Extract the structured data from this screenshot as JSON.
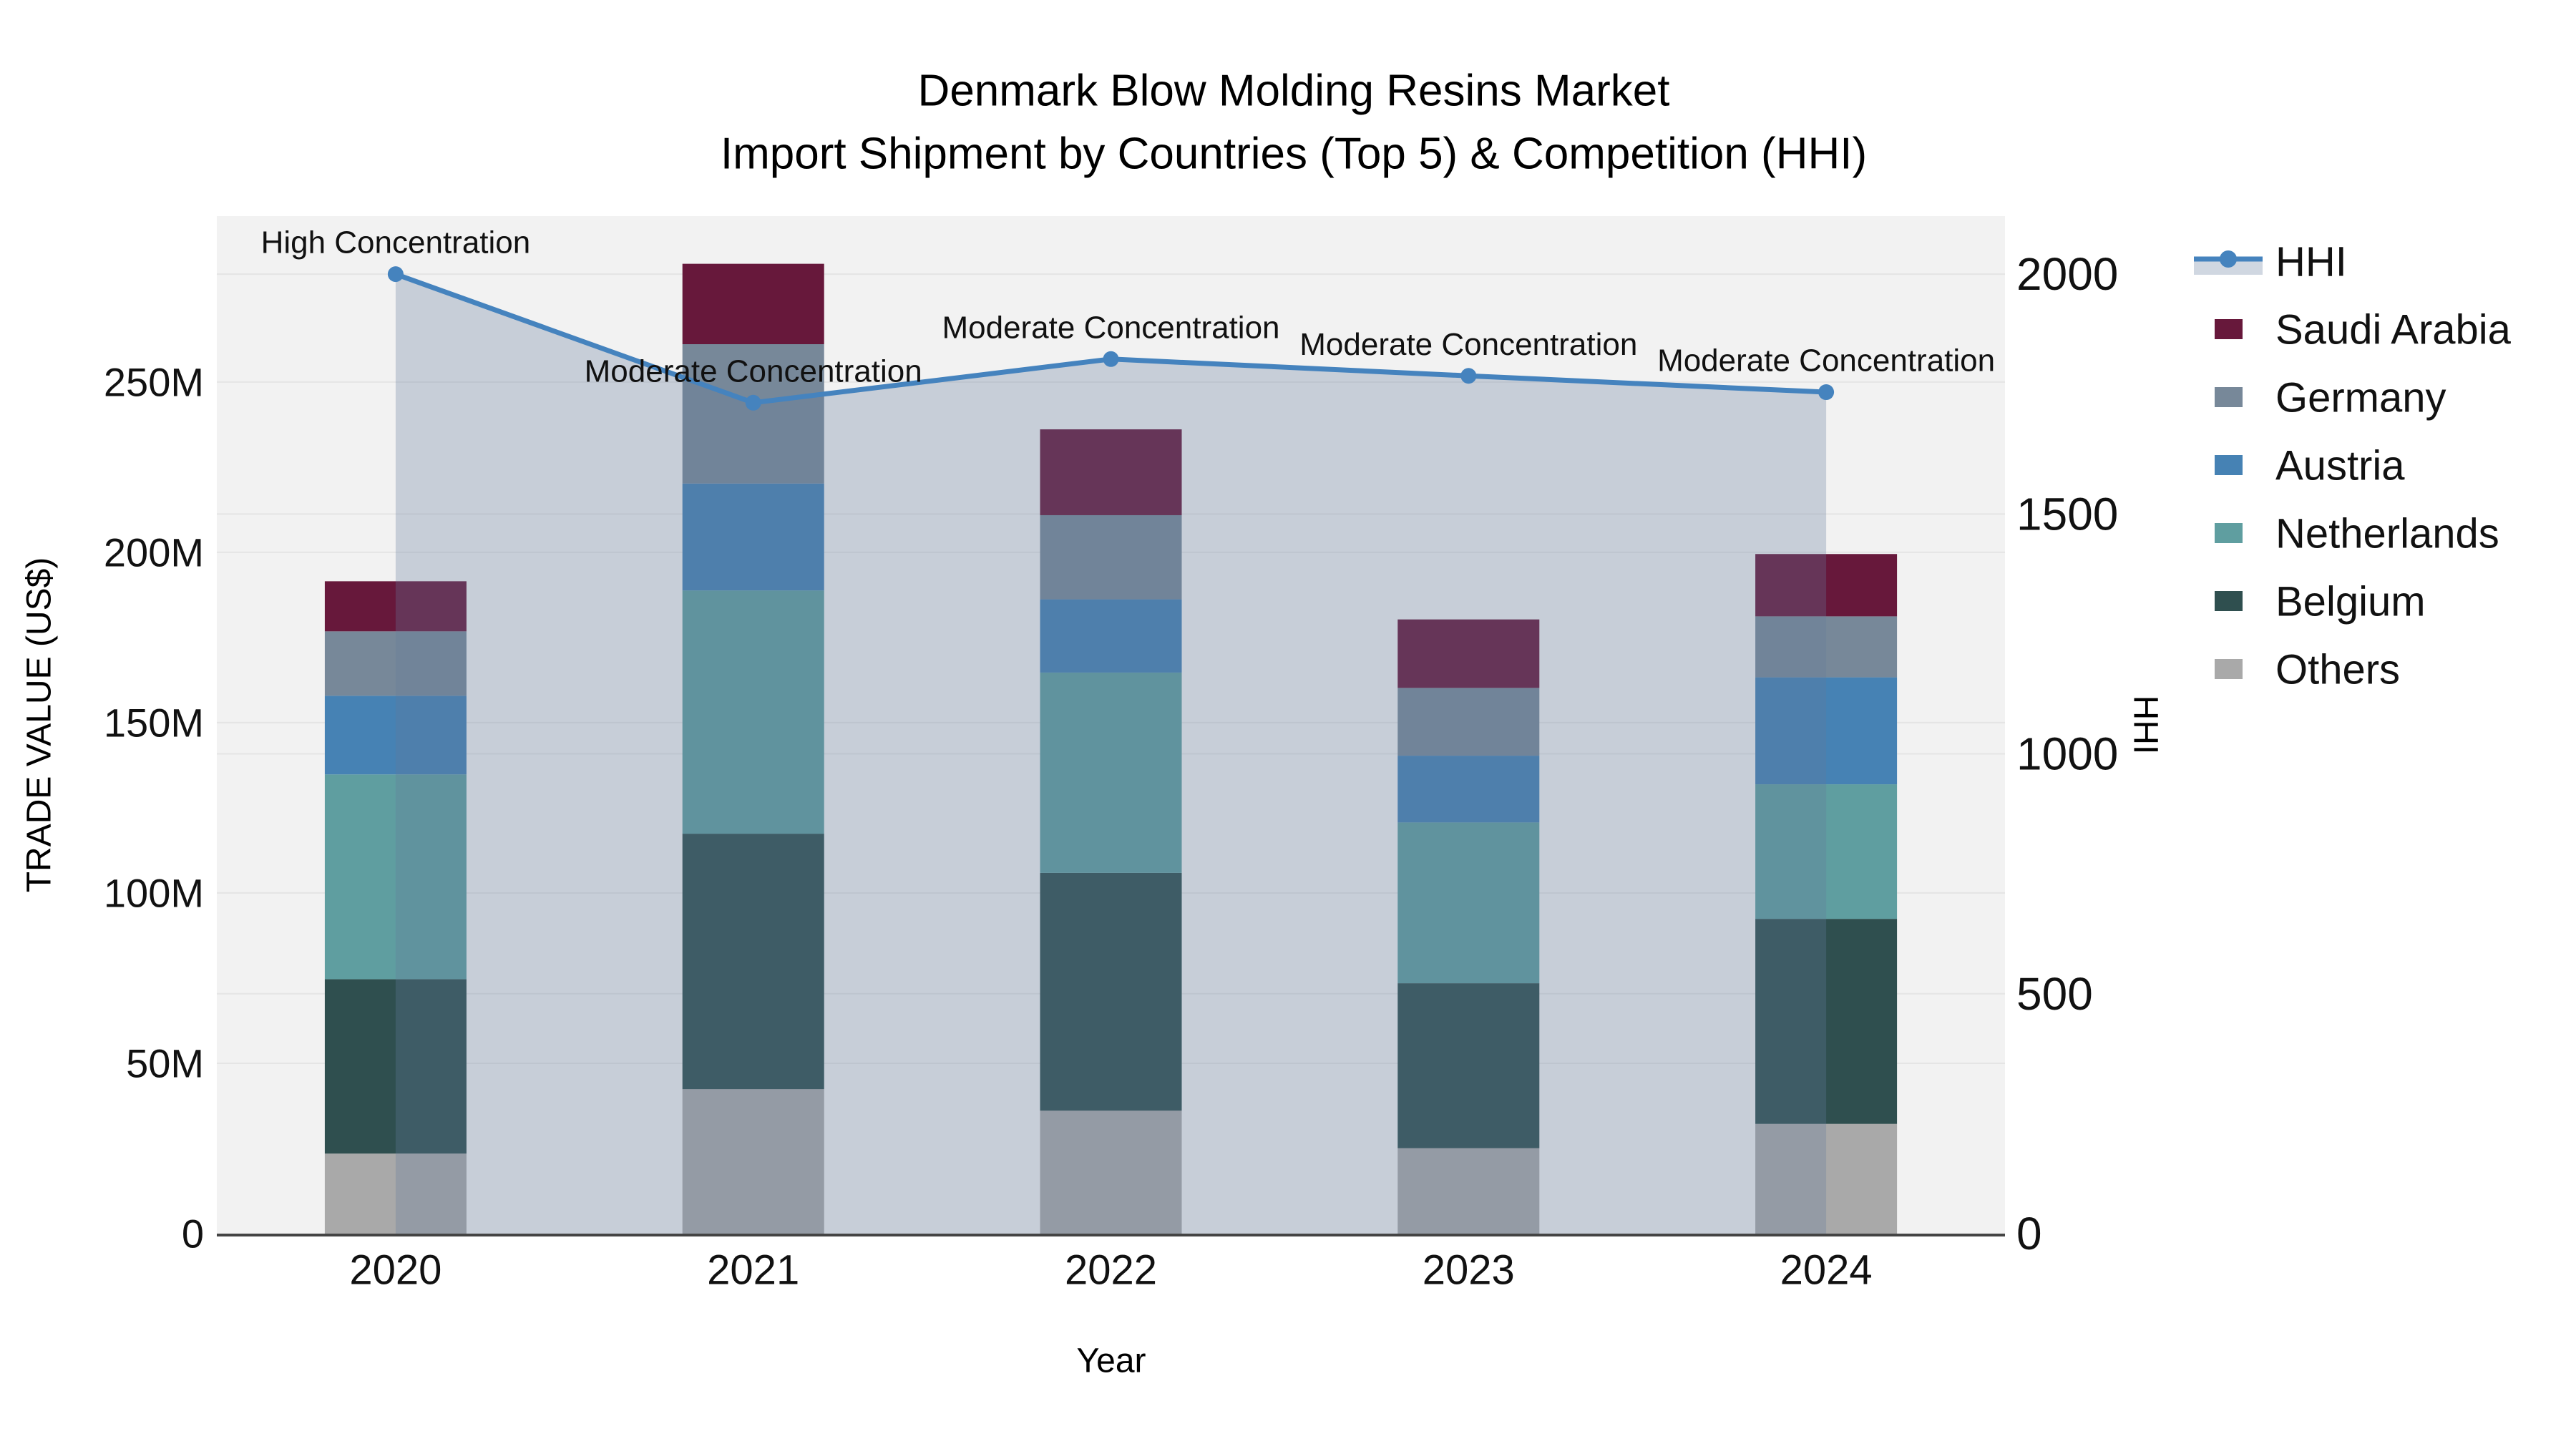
{
  "title": {
    "line1": "Denmark Blow Molding Resins Market",
    "line2": "Import Shipment by Countries (Top 5) & Competition (HHI)"
  },
  "axes": {
    "x": {
      "title": "Year",
      "ticks": [
        "2020",
        "2021",
        "2022",
        "2023",
        "2024"
      ]
    },
    "y_left": {
      "title": "TRADE VALUE (US$)",
      "ticks": [
        {
          "label": "0",
          "value": 0
        },
        {
          "label": "50M",
          "value": 50
        },
        {
          "label": "100M",
          "value": 100
        },
        {
          "label": "150M",
          "value": 150
        },
        {
          "label": "200M",
          "value": 200
        },
        {
          "label": "250M",
          "value": 250
        }
      ]
    },
    "y_right": {
      "title": "HHI",
      "ticks": [
        {
          "label": "0",
          "value": 0
        },
        {
          "label": "500",
          "value": 500
        },
        {
          "label": "1000",
          "value": 1000
        },
        {
          "label": "1500",
          "value": 1500
        },
        {
          "label": "2000",
          "value": 2000
        }
      ]
    }
  },
  "legend": {
    "items": [
      {
        "label": "HHI",
        "type": "line",
        "color": "#4583BE",
        "fill": "rgba(100,122,155,0.30)"
      },
      {
        "label": "Saudi Arabia",
        "type": "swatch",
        "color": "#67183B"
      },
      {
        "label": "Germany",
        "type": "swatch",
        "color": "#778899"
      },
      {
        "label": "Austria",
        "type": "swatch",
        "color": "#4682B4"
      },
      {
        "label": "Netherlands",
        "type": "swatch",
        "color": "#5F9EA0"
      },
      {
        "label": "Belgium",
        "type": "swatch",
        "color": "#2F4F4F"
      },
      {
        "label": "Others",
        "type": "swatch",
        "color": "#A9A9A9"
      }
    ]
  },
  "colors": {
    "plot_bg": "#F2F2F2",
    "gridline": "#E5E5E5",
    "axis_line": "#444444",
    "hhi_line": "#4583BE",
    "hhi_area": "rgba(100,122,155,0.30)",
    "text": "#111111"
  },
  "chart_data": {
    "type": "bar",
    "subtype": "stacked-bars-with-line-overlay",
    "title": "Denmark Blow Molding Resins Market — Import Shipment by Countries (Top 5) & Competition (HHI)",
    "xlabel": "Year",
    "ylabel_left": "TRADE VALUE (US$)",
    "ylabel_right": "HHI",
    "categories": [
      "2020",
      "2021",
      "2022",
      "2023",
      "2024"
    ],
    "stack_order_bottom_to_top": [
      "Others",
      "Belgium",
      "Netherlands",
      "Austria",
      "Germany",
      "Saudi Arabia"
    ],
    "series": [
      {
        "name": "Others",
        "color": "#A9A9A9",
        "values": [
          23.5,
          42.4,
          36.1,
          25.1,
          32.2
        ]
      },
      {
        "name": "Belgium",
        "color": "#2F4F4F",
        "values": [
          51.2,
          75.0,
          69.8,
          48.4,
          60.2
        ]
      },
      {
        "name": "Netherlands",
        "color": "#5F9EA0",
        "values": [
          60.1,
          71.4,
          58.8,
          47.2,
          39.5
        ]
      },
      {
        "name": "Austria",
        "color": "#4682B4",
        "values": [
          23.1,
          31.4,
          21.5,
          19.6,
          31.4
        ]
      },
      {
        "name": "Germany",
        "color": "#778899",
        "values": [
          18.9,
          40.9,
          24.7,
          19.9,
          17.9
        ]
      },
      {
        "name": "Saudi Arabia",
        "color": "#67183B",
        "values": [
          14.7,
          23.6,
          25.2,
          20.1,
          18.3
        ]
      }
    ],
    "bar_totals": [
      191.5,
      284.7,
      236.1,
      180.3,
      199.5
    ],
    "line_series": {
      "name": "HHI",
      "axis": "right",
      "values": [
        2000,
        1732,
        1823,
        1788,
        1754
      ],
      "area_fill": true
    },
    "annotations": [
      {
        "x": "2020",
        "text": "High Concentration"
      },
      {
        "x": "2021",
        "text": "Moderate Concentration"
      },
      {
        "x": "2022",
        "text": "Moderate Concentration"
      },
      {
        "x": "2023",
        "text": "Moderate Concentration"
      },
      {
        "x": "2024",
        "text": "Moderate Concentration"
      }
    ],
    "ylim_left": [
      0,
      298.7
    ],
    "ylim_right": [
      0,
      2121
    ],
    "grid": true,
    "legend_position": "right"
  }
}
